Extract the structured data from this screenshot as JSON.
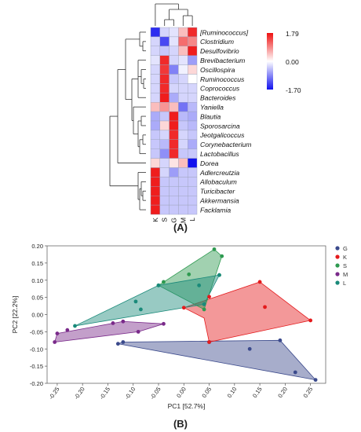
{
  "panel_a_label": "(A)",
  "panel_b_label": "(B)",
  "chart_data": [
    {
      "type": "heatmap",
      "title": "",
      "columns": [
        "K",
        "S",
        "G",
        "M",
        "L"
      ],
      "rows": [
        "[Ruminococcus]",
        "Clostridium",
        "Desulfovibrio",
        "Brevibacterium",
        "Oscillospira",
        "Ruminococcus",
        "Coprococcus",
        "Bacteroides",
        "Yaniella",
        "Blautia",
        "Sporosarcina",
        "Jeotgalicoccus",
        "Corynebacterium",
        "Lactobacillus",
        "Dorea",
        "Adlercreutzia",
        "Allobaculum",
        "Turicibacter",
        "Akkermansia",
        "Facklamia"
      ],
      "values": [
        [
          -1.5,
          -0.3,
          -0.2,
          0.5,
          1.6
        ],
        [
          -0.3,
          -1.3,
          -0.2,
          1.1,
          0.9
        ],
        [
          -0.3,
          -0.4,
          -0.3,
          0.5,
          1.7
        ],
        [
          -0.2,
          1.6,
          -0.3,
          -0.2,
          -0.7
        ],
        [
          -0.3,
          1.5,
          -0.9,
          -0.1,
          0.3
        ],
        [
          -0.3,
          1.6,
          -0.4,
          -0.3,
          0.0
        ],
        [
          -0.3,
          1.6,
          -0.3,
          -0.3,
          -0.3
        ],
        [
          -0.3,
          1.7,
          -0.6,
          -0.3,
          -0.3
        ],
        [
          0.5,
          0.8,
          0.5,
          -1.0,
          -0.5
        ],
        [
          -0.6,
          -0.4,
          1.7,
          -0.5,
          -0.6
        ],
        [
          -0.6,
          0.3,
          1.7,
          -0.4,
          -0.5
        ],
        [
          -0.4,
          -0.3,
          1.6,
          -0.3,
          -0.4
        ],
        [
          -0.4,
          -0.5,
          1.6,
          -0.3,
          -0.6
        ],
        [
          -0.4,
          -0.8,
          1.6,
          -0.4,
          -0.4
        ],
        [
          0.3,
          -0.3,
          0.2,
          0.5,
          -1.7
        ],
        [
          1.7,
          -0.3,
          -0.7,
          -0.4,
          -0.4
        ],
        [
          1.7,
          -0.4,
          -0.4,
          -0.4,
          -0.4
        ],
        [
          1.7,
          -0.4,
          -0.4,
          -0.4,
          -0.4
        ],
        [
          1.7,
          -0.4,
          -0.4,
          -0.4,
          -0.4
        ],
        [
          1.7,
          -0.4,
          -0.4,
          -0.4,
          -0.4
        ]
      ],
      "color_scale": {
        "min": -1.7,
        "mid": 0.0,
        "max": 1.79,
        "labels": [
          "1.79",
          "0.00",
          "-1.70"
        ],
        "colors": [
          "#1111ee",
          "#ffffff",
          "#ee1111"
        ]
      },
      "clustering": "rows and columns dendrograms"
    },
    {
      "type": "scatter",
      "title": "",
      "xlabel": "PC1 [52.7%]",
      "ylabel": "PC2 [22.2%]",
      "xlim": [
        -0.27,
        0.28
      ],
      "ylim": [
        -0.2,
        0.2
      ],
      "xticks": [
        "-0.25",
        "-0.20",
        "-0.15",
        "-0.10",
        "-0.05",
        "0.00",
        "0.05",
        "0.10",
        "0.15",
        "0.20",
        "0.25"
      ],
      "yticks": [
        "0.20",
        "0.15",
        "0.10",
        "0.05",
        "0.00",
        "-0.05",
        "-0.10",
        "-0.15",
        "-0.20"
      ],
      "legend_position": "top-right",
      "grid": false,
      "series": [
        {
          "name": "G",
          "color": "#3b4a8c",
          "points": [
            [
              -0.13,
              -0.085
            ],
            [
              -0.12,
              -0.08
            ],
            [
              0.13,
              -0.1
            ],
            [
              0.19,
              -0.075
            ],
            [
              0.22,
              -0.168
            ],
            [
              0.26,
              -0.19
            ],
            [
              0.05,
              -0.08
            ]
          ],
          "hull": [
            [
              -0.13,
              -0.085
            ],
            [
              -0.12,
              -0.08
            ],
            [
              0.19,
              -0.075
            ],
            [
              0.26,
              -0.19
            ]
          ]
        },
        {
          "name": "K",
          "color": "#e41a1c",
          "points": [
            [
              0.0,
              0.02
            ],
            [
              0.05,
              0.052
            ],
            [
              0.15,
              0.095
            ],
            [
              0.16,
              0.022
            ],
            [
              0.25,
              -0.017
            ],
            [
              0.05,
              -0.08
            ]
          ],
          "hull": [
            [
              0.0,
              0.02
            ],
            [
              0.15,
              0.095
            ],
            [
              0.25,
              -0.017
            ],
            [
              0.05,
              -0.08
            ],
            [
              0.04,
              -0.01
            ]
          ]
        },
        {
          "name": "S",
          "color": "#2e9a50",
          "points": [
            [
              -0.05,
              0.085
            ],
            [
              -0.04,
              0.095
            ],
            [
              0.01,
              0.117
            ],
            [
              0.06,
              0.19
            ],
            [
              0.075,
              0.17
            ],
            [
              0.07,
              0.115
            ],
            [
              0.04,
              0.015
            ]
          ],
          "hull": [
            [
              -0.05,
              0.085
            ],
            [
              0.06,
              0.19
            ],
            [
              0.075,
              0.17
            ],
            [
              0.04,
              0.015
            ]
          ]
        },
        {
          "name": "M",
          "color": "#7a2a8a",
          "points": [
            [
              -0.255,
              -0.08
            ],
            [
              -0.25,
              -0.055
            ],
            [
              -0.23,
              -0.045
            ],
            [
              -0.14,
              -0.025
            ],
            [
              -0.12,
              -0.02
            ],
            [
              -0.09,
              -0.05
            ],
            [
              -0.04,
              -0.027
            ]
          ],
          "hull": [
            [
              -0.255,
              -0.08
            ],
            [
              -0.25,
              -0.055
            ],
            [
              -0.12,
              -0.02
            ],
            [
              -0.04,
              -0.027
            ],
            [
              -0.09,
              -0.05
            ]
          ]
        },
        {
          "name": "L",
          "color": "#1a8a7a",
          "points": [
            [
              -0.215,
              -0.033
            ],
            [
              -0.095,
              0.038
            ],
            [
              -0.085,
              0.015
            ],
            [
              -0.05,
              0.085
            ],
            [
              0.03,
              0.085
            ],
            [
              0.07,
              0.115
            ],
            [
              0.04,
              0.03
            ]
          ],
          "hull": [
            [
              -0.215,
              -0.033
            ],
            [
              -0.05,
              0.085
            ],
            [
              0.07,
              0.115
            ],
            [
              0.04,
              0.03
            ]
          ]
        }
      ]
    }
  ]
}
